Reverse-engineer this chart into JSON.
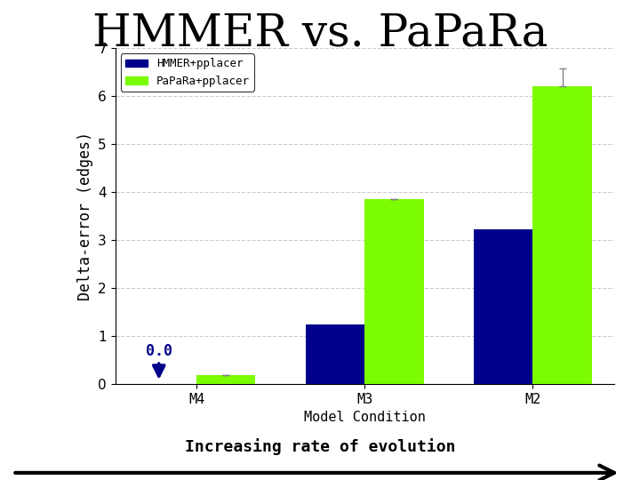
{
  "title": "HMMER vs. PaPaRa",
  "title_fontsize": 36,
  "categories": [
    "M4",
    "M3",
    "M2"
  ],
  "hmmer_values": [
    0.0,
    1.25,
    3.22
  ],
  "papara_values": [
    0.18,
    3.85,
    6.2
  ],
  "papara_errors": [
    0.0,
    0.0,
    0.38
  ],
  "hmmer_color": "#00008B",
  "papara_color": "#7CFC00",
  "ylim": [
    0,
    7
  ],
  "yticks": [
    0,
    1,
    2,
    3,
    4,
    5,
    6,
    7
  ],
  "ylabel": "Delta-error (edges)",
  "xlabel": "Model Condition",
  "legend_labels": [
    "HMMER+pplacer",
    "PaPaRa+pplacer"
  ],
  "bar_width": 0.35,
  "annotation_text": "0.0",
  "bottom_text": "Increasing rate of evolution",
  "grid_color": "#CCCCCC",
  "background_color": "#FFFFFF",
  "fig_background": "#FFFFFF"
}
